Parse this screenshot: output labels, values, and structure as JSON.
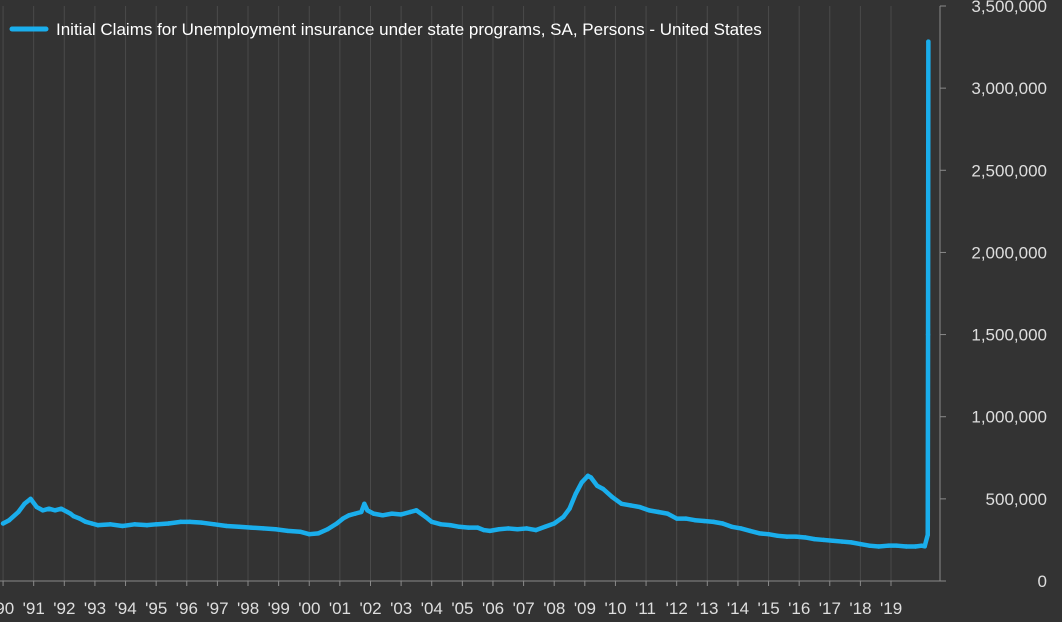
{
  "chart_data": {
    "type": "line",
    "x_unit": "year",
    "xlim": [
      1989.9,
      2020.6
    ],
    "ylim": [
      0,
      3500000
    ],
    "y_ticks": [
      0,
      500000,
      1000000,
      1500000,
      2000000,
      2500000,
      3000000,
      3500000
    ],
    "y_tick_labels": [
      "0",
      "500,000",
      "1,000,000",
      "1,500,000",
      "2,000,000",
      "2,500,000",
      "3,000,000",
      "3,500,000"
    ],
    "x_ticks": [
      1990,
      1991,
      1992,
      1993,
      1994,
      1995,
      1996,
      1997,
      1998,
      1999,
      2000,
      2001,
      2002,
      2003,
      2004,
      2005,
      2006,
      2007,
      2008,
      2009,
      2010,
      2011,
      2012,
      2013,
      2014,
      2015,
      2016,
      2017,
      2018,
      2019
    ],
    "x_tick_labels": [
      "'90",
      "'91",
      "'92",
      "'93",
      "'94",
      "'95",
      "'96",
      "'97",
      "'98",
      "'99",
      "'00",
      "'01",
      "'02",
      "'03",
      "'04",
      "'05",
      "'06",
      "'07",
      "'08",
      "'09",
      "'10",
      "'11",
      "'12",
      "'13",
      "'14",
      "'15",
      "'16",
      "'17",
      "'18",
      "'19"
    ],
    "y_axis_position": "right",
    "grid": "vertical",
    "legend_position": "top-left",
    "series": [
      {
        "name": "Initial Claims for Unemployment insurance under state programs, SA, Persons - United States",
        "color": "#1aaeec",
        "x": [
          1990.0,
          1990.2,
          1990.5,
          1990.7,
          1990.9,
          1991.1,
          1991.3,
          1991.5,
          1991.7,
          1991.9,
          1992.1,
          1992.2,
          1992.3,
          1992.5,
          1992.7,
          1992.9,
          1993.1,
          1993.5,
          1993.9,
          1994.3,
          1994.7,
          1995.0,
          1995.4,
          1995.8,
          1996.1,
          1996.5,
          1996.9,
          1997.3,
          1997.7,
          1998.1,
          1998.5,
          1998.9,
          1999.3,
          1999.7,
          2000.0,
          2000.3,
          2000.6,
          2000.9,
          2001.1,
          2001.3,
          2001.5,
          2001.7,
          2001.8,
          2001.9,
          2002.1,
          2002.4,
          2002.7,
          2003.0,
          2003.3,
          2003.5,
          2003.8,
          2004.0,
          2004.3,
          2004.6,
          2004.9,
          2005.2,
          2005.5,
          2005.7,
          2005.9,
          2006.2,
          2006.5,
          2006.8,
          2007.1,
          2007.4,
          2007.7,
          2008.0,
          2008.3,
          2008.5,
          2008.7,
          2008.9,
          2009.1,
          2009.2,
          2009.4,
          2009.6,
          2009.9,
          2010.2,
          2010.5,
          2010.8,
          2011.1,
          2011.4,
          2011.7,
          2012.0,
          2012.3,
          2012.6,
          2012.9,
          2013.2,
          2013.5,
          2013.8,
          2014.1,
          2014.4,
          2014.7,
          2015.0,
          2015.3,
          2015.6,
          2015.9,
          2016.2,
          2016.5,
          2016.8,
          2017.1,
          2017.4,
          2017.7,
          2018.0,
          2018.3,
          2018.6,
          2018.9,
          2019.2,
          2019.5,
          2019.8,
          2020.0,
          2020.1,
          2020.2,
          2020.21,
          2020.22
        ],
        "values": [
          350000,
          370000,
          420000,
          470000,
          500000,
          450000,
          430000,
          440000,
          430000,
          440000,
          420000,
          410000,
          395000,
          380000,
          360000,
          350000,
          340000,
          345000,
          335000,
          345000,
          340000,
          345000,
          350000,
          360000,
          360000,
          355000,
          345000,
          335000,
          330000,
          325000,
          320000,
          315000,
          305000,
          300000,
          285000,
          290000,
          315000,
          350000,
          380000,
          400000,
          410000,
          420000,
          470000,
          430000,
          410000,
          400000,
          410000,
          405000,
          420000,
          430000,
          390000,
          360000,
          345000,
          340000,
          330000,
          325000,
          325000,
          310000,
          305000,
          315000,
          320000,
          315000,
          320000,
          310000,
          330000,
          350000,
          390000,
          440000,
          530000,
          600000,
          640000,
          630000,
          580000,
          560000,
          510000,
          470000,
          460000,
          450000,
          430000,
          420000,
          410000,
          380000,
          380000,
          370000,
          365000,
          360000,
          350000,
          330000,
          320000,
          305000,
          290000,
          285000,
          275000,
          270000,
          270000,
          265000,
          255000,
          250000,
          245000,
          240000,
          235000,
          225000,
          215000,
          210000,
          215000,
          215000,
          210000,
          210000,
          215000,
          211000,
          281000,
          1500000,
          3283000
        ]
      }
    ]
  }
}
